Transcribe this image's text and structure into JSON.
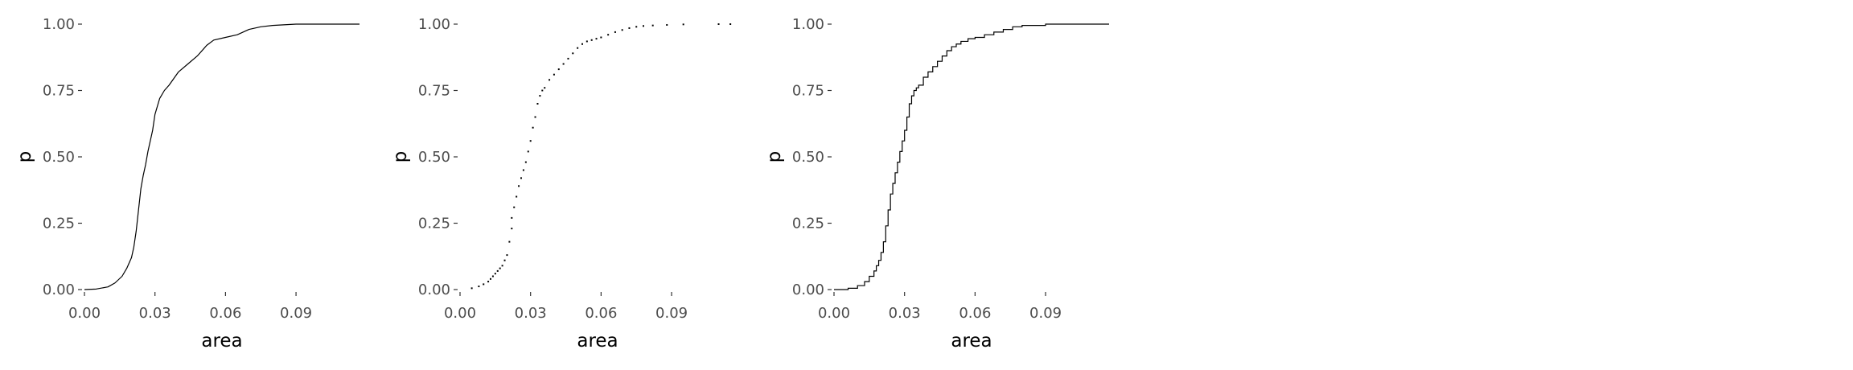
{
  "chart_data": [
    {
      "type": "line",
      "style": "smooth-line",
      "xlabel": "area",
      "ylabel": "p",
      "xlim": [
        0.0,
        0.117
      ],
      "ylim": [
        0.0,
        1.0
      ],
      "xticks": [
        "0.00",
        "0.03",
        "0.06",
        "0.09"
      ],
      "yticks": [
        "0.00",
        "0.25",
        "0.50",
        "0.75",
        "1.00"
      ],
      "grid": false,
      "series": [
        {
          "x": [
            0.0,
            0.005,
            0.01,
            0.013,
            0.016,
            0.018,
            0.02,
            0.021,
            0.022,
            0.023,
            0.024,
            0.025,
            0.026,
            0.027,
            0.028,
            0.029,
            0.03,
            0.032,
            0.034,
            0.036,
            0.04,
            0.044,
            0.048,
            0.052,
            0.055,
            0.06,
            0.065,
            0.07,
            0.075,
            0.08,
            0.09,
            0.1,
            0.117
          ],
          "y": [
            0.0,
            0.002,
            0.01,
            0.025,
            0.05,
            0.08,
            0.12,
            0.16,
            0.22,
            0.3,
            0.38,
            0.43,
            0.47,
            0.52,
            0.56,
            0.6,
            0.66,
            0.72,
            0.75,
            0.77,
            0.82,
            0.85,
            0.88,
            0.92,
            0.94,
            0.95,
            0.96,
            0.98,
            0.99,
            0.995,
            1.0,
            1.0,
            1.0
          ]
        }
      ]
    },
    {
      "type": "scatter",
      "xlabel": "area",
      "ylabel": "p",
      "xlim": [
        0.0,
        0.117
      ],
      "ylim": [
        0.0,
        1.0
      ],
      "xticks": [
        "0.00",
        "0.03",
        "0.06",
        "0.09"
      ],
      "yticks": [
        "0.00",
        "0.25",
        "0.50",
        "0.75",
        "1.00"
      ],
      "grid": false,
      "series": [
        {
          "x": [
            0.005,
            0.008,
            0.01,
            0.012,
            0.013,
            0.014,
            0.015,
            0.016,
            0.017,
            0.018,
            0.019,
            0.02,
            0.021,
            0.022,
            0.022,
            0.023,
            0.024,
            0.025,
            0.026,
            0.027,
            0.028,
            0.029,
            0.03,
            0.031,
            0.032,
            0.033,
            0.034,
            0.035,
            0.036,
            0.038,
            0.04,
            0.042,
            0.044,
            0.046,
            0.048,
            0.05,
            0.052,
            0.054,
            0.056,
            0.058,
            0.06,
            0.063,
            0.066,
            0.069,
            0.072,
            0.075,
            0.078,
            0.082,
            0.088,
            0.095,
            0.11,
            0.115
          ],
          "y": [
            0.005,
            0.012,
            0.02,
            0.03,
            0.04,
            0.05,
            0.06,
            0.07,
            0.08,
            0.09,
            0.11,
            0.13,
            0.18,
            0.23,
            0.27,
            0.31,
            0.35,
            0.39,
            0.42,
            0.45,
            0.48,
            0.52,
            0.56,
            0.61,
            0.65,
            0.7,
            0.73,
            0.75,
            0.76,
            0.79,
            0.81,
            0.83,
            0.85,
            0.87,
            0.89,
            0.91,
            0.925,
            0.935,
            0.94,
            0.945,
            0.95,
            0.96,
            0.97,
            0.978,
            0.985,
            0.99,
            0.993,
            0.995,
            0.997,
            0.999,
            1.0,
            1.0
          ]
        }
      ]
    },
    {
      "type": "line",
      "style": "step",
      "xlabel": "area",
      "ylabel": "p",
      "xlim": [
        0.0,
        0.117
      ],
      "ylim": [
        0.0,
        1.0
      ],
      "xticks": [
        "0.00",
        "0.03",
        "0.06",
        "0.09"
      ],
      "yticks": [
        "0.00",
        "0.25",
        "0.50",
        "0.75",
        "1.00"
      ],
      "grid": false,
      "series": [
        {
          "x": [
            0.0,
            0.006,
            0.01,
            0.013,
            0.015,
            0.017,
            0.018,
            0.019,
            0.02,
            0.021,
            0.022,
            0.023,
            0.024,
            0.025,
            0.026,
            0.027,
            0.028,
            0.029,
            0.03,
            0.031,
            0.032,
            0.033,
            0.034,
            0.035,
            0.036,
            0.038,
            0.04,
            0.042,
            0.044,
            0.046,
            0.048,
            0.05,
            0.052,
            0.054,
            0.057,
            0.06,
            0.064,
            0.068,
            0.072,
            0.076,
            0.08,
            0.09,
            0.117
          ],
          "y": [
            0.0,
            0.005,
            0.015,
            0.03,
            0.05,
            0.07,
            0.09,
            0.11,
            0.14,
            0.18,
            0.24,
            0.3,
            0.36,
            0.4,
            0.44,
            0.48,
            0.52,
            0.56,
            0.6,
            0.65,
            0.7,
            0.73,
            0.75,
            0.76,
            0.77,
            0.8,
            0.82,
            0.84,
            0.86,
            0.88,
            0.9,
            0.915,
            0.925,
            0.935,
            0.945,
            0.95,
            0.96,
            0.97,
            0.98,
            0.99,
            0.995,
            1.0,
            1.0
          ]
        }
      ]
    }
  ]
}
